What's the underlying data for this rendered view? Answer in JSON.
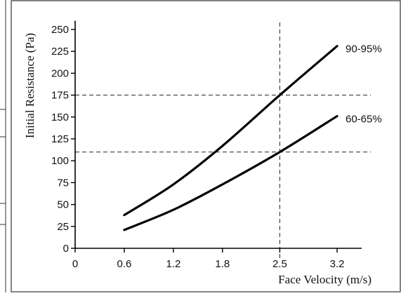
{
  "chart_data": {
    "type": "line",
    "xlabel": "Face Velocity (m/s)",
    "ylabel": "Initial Resistance (Pa)",
    "xlim": [
      0,
      3.5
    ],
    "ylim": [
      0,
      260
    ],
    "x_ticks": [
      0,
      0.6,
      1.2,
      1.8,
      2.5,
      3.2
    ],
    "x_tick_labels": [
      "0",
      "0.6",
      "1.2",
      "1.8",
      "2.5",
      "3.2"
    ],
    "y_ticks": [
      0,
      25,
      50,
      75,
      100,
      125,
      150,
      175,
      200,
      225,
      250
    ],
    "y_tick_labels": [
      "0",
      "25",
      "50",
      "75",
      "100",
      "125",
      "150",
      "175",
      "200",
      "225",
      "250"
    ],
    "grid": false,
    "series": [
      {
        "name": "90-95%",
        "color": "#000000",
        "points": [
          {
            "x": 0.6,
            "y": 38
          },
          {
            "x": 1.2,
            "y": 73
          },
          {
            "x": 1.8,
            "y": 117
          },
          {
            "x": 2.5,
            "y": 175
          },
          {
            "x": 3.2,
            "y": 231
          }
        ]
      },
      {
        "name": "60-65%",
        "color": "#000000",
        "points": [
          {
            "x": 0.6,
            "y": 21
          },
          {
            "x": 1.2,
            "y": 44
          },
          {
            "x": 1.8,
            "y": 73
          },
          {
            "x": 2.5,
            "y": 110
          },
          {
            "x": 3.2,
            "y": 151
          }
        ]
      }
    ],
    "reference_lines": [
      {
        "orientation": "vertical",
        "value": 2.5
      },
      {
        "orientation": "horizontal",
        "value": 175
      },
      {
        "orientation": "horizontal",
        "value": 110
      }
    ]
  }
}
